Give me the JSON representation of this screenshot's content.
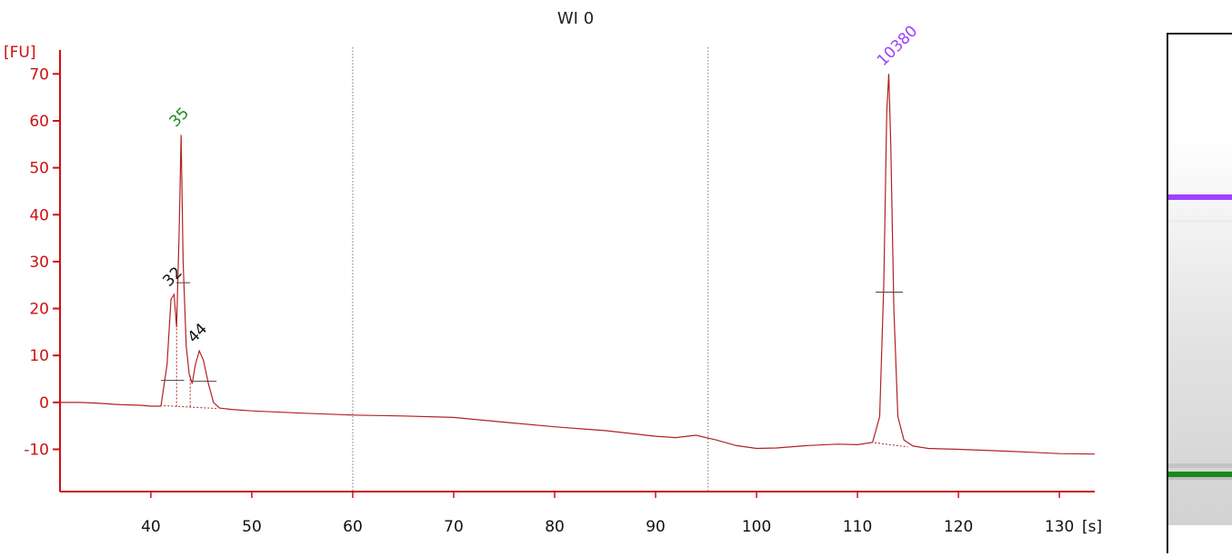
{
  "title": "WI 0",
  "colors": {
    "axis": "#cc1111",
    "trace": "#b22222",
    "marker_lower": "#1a8a1a",
    "marker_upper": "#a040ff",
    "peak_label": "#111111"
  },
  "chart_data": {
    "type": "line",
    "title": "WI 0",
    "xlabel": "[s]",
    "ylabel": "[FU]",
    "xlim": [
      31,
      133.5
    ],
    "ylim": [
      -19,
      78
    ],
    "xticks": [
      40,
      50,
      60,
      70,
      80,
      90,
      100,
      110,
      120,
      130
    ],
    "yticks": [
      -10,
      0,
      10,
      20,
      30,
      40,
      50,
      60,
      70
    ],
    "grid": false,
    "window_lines_x": [
      60,
      95.2
    ],
    "series": [
      {
        "x": [
          31,
          33,
          35,
          37,
          39,
          40,
          41,
          41.6,
          42.0,
          42.3,
          42.55,
          42.8,
          43.0,
          43.2,
          43.5,
          43.8,
          44.1,
          44.4,
          44.8,
          45.2,
          45.7,
          46.2,
          46.8,
          48,
          50,
          55,
          60,
          65,
          70,
          75,
          80,
          85,
          90,
          92,
          94,
          96,
          98,
          100,
          102,
          105,
          108,
          110,
          111.5,
          112.2,
          112.6,
          112.9,
          113.1,
          113.3,
          113.6,
          114.0,
          114.6,
          115.5,
          117,
          120,
          125,
          130,
          133.5
        ],
        "y": [
          0,
          0,
          -0.2,
          -0.5,
          -0.6,
          -0.8,
          -0.8,
          8,
          22,
          23,
          16,
          36,
          57,
          30,
          12,
          6,
          4,
          8,
          11,
          9,
          4,
          0,
          -1.2,
          -1.5,
          -1.8,
          -2.3,
          -2.7,
          -2.9,
          -3.2,
          -4.2,
          -5.2,
          -6,
          -7.2,
          -7.5,
          -7.0,
          -8,
          -9.2,
          -9.8,
          -9.7,
          -9.2,
          -8.9,
          -9.0,
          -8.5,
          -3,
          25,
          62,
          70,
          55,
          20,
          -3,
          -8,
          -9.3,
          -9.8,
          -10,
          -10.4,
          -10.9,
          -11
        ]
      }
    ],
    "peaks": [
      {
        "label": "35",
        "x": 43.0,
        "y": 57,
        "role": "lower-marker"
      },
      {
        "label": "32",
        "x": 42.35,
        "y": 23,
        "role": "peak"
      },
      {
        "label": "44",
        "x": 44.8,
        "y": 11,
        "role": "peak"
      },
      {
        "label": "10380",
        "x": 113.1,
        "y": 70,
        "role": "upper-marker"
      }
    ],
    "lane_bands": [
      {
        "role": "upper-marker",
        "color": "#a040ff"
      },
      {
        "role": "lower-marker",
        "color": "#1a8a1a"
      }
    ]
  }
}
